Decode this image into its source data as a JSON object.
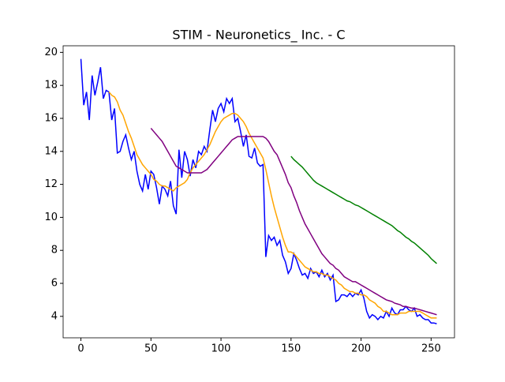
{
  "chart_data": {
    "type": "line",
    "title": "STIM - Neuronetics_ Inc. - C",
    "x": [
      0,
      2,
      4,
      6,
      8,
      10,
      12,
      14,
      16,
      18,
      20,
      22,
      24,
      26,
      28,
      30,
      32,
      34,
      36,
      38,
      40,
      42,
      44,
      46,
      48,
      50,
      52,
      54,
      56,
      58,
      60,
      62,
      64,
      66,
      68,
      70,
      72,
      74,
      76,
      78,
      80,
      82,
      84,
      86,
      88,
      90,
      92,
      94,
      96,
      98,
      100,
      102,
      104,
      106,
      108,
      110,
      112,
      114,
      116,
      118,
      120,
      122,
      124,
      126,
      128,
      130,
      132,
      134,
      136,
      138,
      140,
      142,
      144,
      146,
      148,
      150,
      152,
      154,
      156,
      158,
      160,
      162,
      164,
      166,
      168,
      170,
      172,
      174,
      176,
      178,
      180,
      182,
      184,
      186,
      188,
      190,
      192,
      194,
      196,
      198,
      200,
      202,
      204,
      206,
      208,
      210,
      212,
      214,
      216,
      218,
      220,
      222,
      224,
      226,
      228,
      230,
      232,
      234,
      236,
      238,
      240,
      242,
      244,
      246,
      248,
      250,
      252,
      254
    ],
    "series": [
      {
        "color": "#0000ff",
        "values": [
          19.6,
          16.8,
          17.6,
          15.9,
          18.6,
          17.4,
          18.2,
          19.1,
          17.2,
          17.7,
          17.6,
          15.9,
          16.6,
          13.9,
          14.0,
          14.6,
          15.0,
          14.2,
          13.5,
          14.0,
          12.8,
          12.0,
          11.6,
          12.6,
          11.7,
          12.8,
          12.6,
          11.8,
          10.8,
          11.9,
          11.7,
          11.3,
          12.2,
          10.7,
          10.2,
          14.1,
          12.4,
          14.0,
          13.5,
          12.5,
          13.5,
          13.0,
          14.0,
          13.8,
          14.3,
          14.0,
          15.3,
          16.5,
          15.8,
          16.6,
          16.9,
          16.4,
          17.2,
          16.9,
          17.2,
          15.8,
          16.0,
          15.2,
          14.3,
          15.0,
          13.7,
          13.6,
          14.2,
          13.3,
          13.1,
          13.2,
          7.6,
          8.9,
          8.6,
          8.8,
          8.3,
          8.6,
          7.7,
          7.3,
          6.6,
          6.9,
          7.8,
          7.4,
          6.9,
          6.5,
          6.6,
          6.3,
          6.9,
          6.6,
          6.7,
          6.4,
          6.8,
          6.4,
          6.6,
          6.2,
          6.5,
          4.9,
          5.0,
          5.3,
          5.3,
          5.2,
          5.4,
          5.2,
          5.4,
          5.3,
          5.6,
          5.1,
          4.3,
          3.9,
          4.1,
          4.0,
          3.8,
          4.0,
          3.9,
          4.3,
          4.0,
          4.5,
          4.2,
          4.1,
          4.4,
          4.4,
          4.6,
          4.4,
          4.3,
          4.5,
          4.0,
          4.1,
          3.9,
          3.8,
          3.8,
          3.6,
          3.6,
          3.55
        ]
      },
      {
        "color": "#ffa500",
        "values": [
          null,
          null,
          null,
          null,
          null,
          null,
          null,
          null,
          null,
          null,
          17.6,
          17.4,
          17.3,
          17.0,
          16.5,
          16.2,
          15.7,
          15.2,
          14.8,
          14.3,
          13.8,
          13.5,
          13.2,
          13.0,
          12.8,
          12.6,
          12.3,
          12.2,
          12.0,
          11.9,
          11.9,
          11.8,
          11.7,
          11.6,
          11.8,
          11.9,
          12.0,
          12.1,
          12.3,
          12.7,
          13.0,
          13.2,
          13.4,
          13.6,
          13.8,
          14.1,
          14.4,
          14.8,
          15.2,
          15.5,
          15.8,
          16.0,
          16.1,
          16.2,
          16.3,
          16.3,
          16.2,
          16.0,
          15.8,
          15.5,
          15.1,
          14.8,
          14.5,
          14.2,
          13.9,
          13.6,
          12.9,
          12.1,
          11.3,
          10.6,
          10.0,
          9.4,
          8.8,
          8.3,
          7.9,
          7.9,
          7.8,
          7.6,
          7.4,
          7.2,
          7.0,
          6.9,
          6.8,
          6.7,
          6.7,
          6.6,
          6.6,
          6.5,
          6.5,
          6.4,
          6.3,
          6.2,
          6.0,
          5.9,
          5.7,
          5.6,
          5.5,
          5.5,
          5.4,
          5.4,
          5.3,
          5.3,
          5.2,
          5.0,
          4.9,
          4.8,
          4.6,
          4.5,
          4.3,
          4.3,
          4.2,
          4.1,
          4.1,
          4.1,
          4.2,
          4.2,
          4.2,
          4.3,
          4.3,
          4.3,
          4.3,
          4.3,
          4.2,
          4.1,
          4.0,
          3.9,
          3.9,
          3.9
        ]
      },
      {
        "color": "#800080",
        "values": [
          null,
          null,
          null,
          null,
          null,
          null,
          null,
          null,
          null,
          null,
          null,
          null,
          null,
          null,
          null,
          null,
          null,
          null,
          null,
          null,
          null,
          null,
          null,
          null,
          null,
          15.4,
          15.2,
          15.0,
          14.8,
          14.6,
          14.3,
          14.0,
          13.7,
          13.4,
          13.1,
          13.0,
          12.9,
          12.8,
          12.7,
          12.7,
          12.7,
          12.7,
          12.7,
          12.7,
          12.8,
          12.9,
          13.1,
          13.3,
          13.5,
          13.7,
          13.9,
          14.1,
          14.3,
          14.5,
          14.7,
          14.8,
          14.9,
          14.9,
          14.9,
          14.9,
          14.9,
          14.9,
          14.9,
          14.9,
          14.9,
          14.9,
          14.8,
          14.6,
          14.3,
          14.0,
          13.8,
          13.4,
          13.0,
          12.6,
          12.1,
          11.8,
          11.3,
          10.9,
          10.4,
          10.0,
          9.6,
          9.3,
          9.0,
          8.7,
          8.4,
          8.1,
          7.8,
          7.6,
          7.4,
          7.2,
          7.1,
          6.9,
          6.8,
          6.6,
          6.4,
          6.3,
          6.2,
          6.1,
          6.1,
          6.0,
          5.9,
          5.8,
          5.7,
          5.6,
          5.5,
          5.4,
          5.3,
          5.2,
          5.1,
          5.0,
          4.95,
          4.9,
          4.8,
          4.75,
          4.7,
          4.6,
          4.6,
          4.55,
          4.5,
          4.5,
          4.45,
          4.4,
          4.35,
          4.3,
          4.25,
          4.2,
          4.15,
          4.1
        ]
      },
      {
        "color": "#008000",
        "values": [
          null,
          null,
          null,
          null,
          null,
          null,
          null,
          null,
          null,
          null,
          null,
          null,
          null,
          null,
          null,
          null,
          null,
          null,
          null,
          null,
          null,
          null,
          null,
          null,
          null,
          null,
          null,
          null,
          null,
          null,
          null,
          null,
          null,
          null,
          null,
          null,
          null,
          null,
          null,
          null,
          null,
          null,
          null,
          null,
          null,
          null,
          null,
          null,
          null,
          null,
          null,
          null,
          null,
          null,
          null,
          null,
          null,
          null,
          null,
          null,
          null,
          null,
          null,
          null,
          null,
          null,
          null,
          null,
          null,
          null,
          null,
          null,
          null,
          null,
          null,
          13.7,
          13.5,
          13.35,
          13.2,
          13.05,
          12.85,
          12.65,
          12.45,
          12.25,
          12.1,
          12.0,
          11.9,
          11.8,
          11.7,
          11.6,
          11.5,
          11.4,
          11.3,
          11.2,
          11.1,
          11.0,
          10.95,
          10.85,
          10.75,
          10.7,
          10.6,
          10.5,
          10.4,
          10.3,
          10.2,
          10.1,
          10.0,
          9.9,
          9.8,
          9.7,
          9.6,
          9.5,
          9.35,
          9.2,
          9.1,
          8.95,
          8.8,
          8.7,
          8.55,
          8.45,
          8.3,
          8.15,
          8.0,
          7.85,
          7.7,
          7.5,
          7.35,
          7.2
        ]
      }
    ],
    "xlim": [
      -12.7,
      266.7
    ],
    "ylim": [
      2.7,
      20.4
    ],
    "xticks": [
      0,
      50,
      100,
      150,
      200,
      250
    ],
    "yticks": [
      4,
      6,
      8,
      10,
      12,
      14,
      16,
      18,
      20
    ]
  }
}
